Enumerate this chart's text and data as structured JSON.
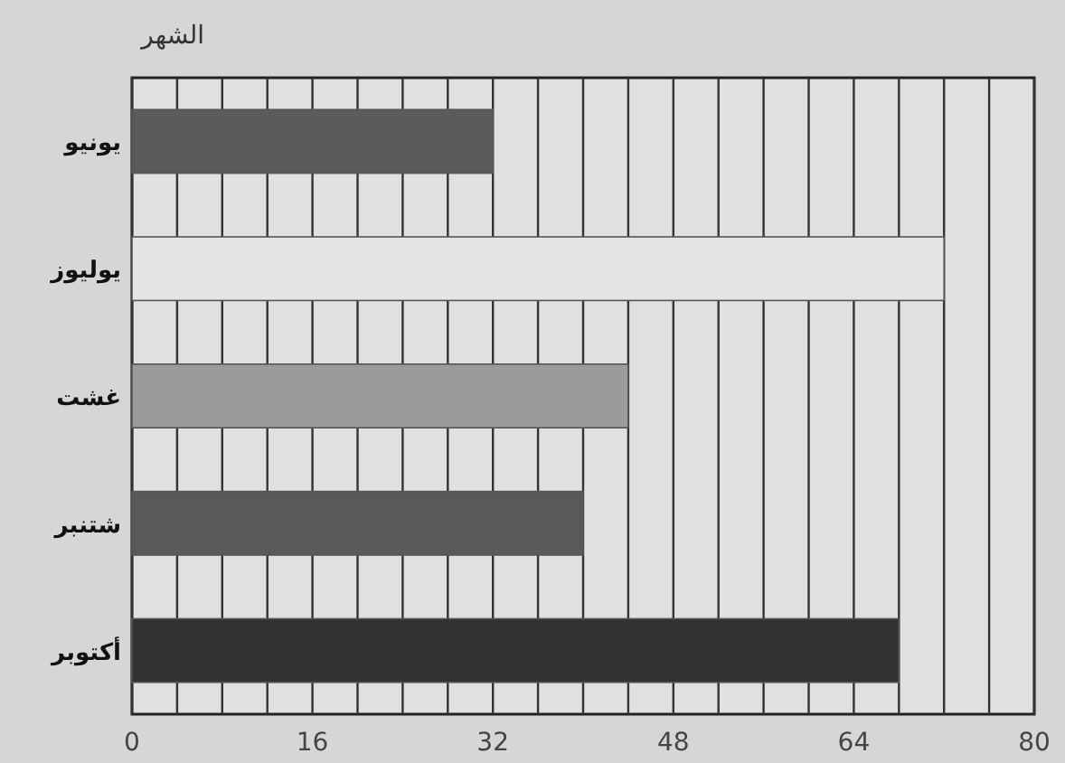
{
  "chart_data": {
    "type": "bar",
    "orientation": "horizontal",
    "ylabel": "الشهر",
    "categories": [
      "يونيو",
      "يوليوز",
      "غشت",
      "شتنبر",
      "أكتوبر"
    ],
    "values": [
      32,
      72,
      44,
      40,
      68
    ],
    "colors": [
      "#5c5a5b",
      "#e6e3e3",
      "#9c9a9a",
      "#5a5858",
      "#333131"
    ],
    "xlim": [
      0,
      80
    ],
    "xticks": [
      0,
      {
        "value": 4,
        "label": null
      },
      {
        "value": 8,
        "label": null
      },
      {
        "value": 12,
        "label": null
      },
      16,
      {
        "value": 20,
        "label": null
      },
      {
        "value": 24,
        "label": null
      },
      {
        "value": 28,
        "label": null
      },
      32,
      {
        "value": 36,
        "label": null
      },
      {
        "value": 40,
        "label": null
      },
      {
        "value": 44,
        "label": null
      },
      48,
      {
        "value": 52,
        "label": null
      },
      {
        "value": 56,
        "label": null
      },
      {
        "value": 60,
        "label": null
      },
      64,
      {
        "value": 68,
        "label": null
      },
      {
        "value": 72,
        "label": null
      },
      {
        "value": 76,
        "label": null
      },
      80
    ],
    "grid": "x"
  }
}
